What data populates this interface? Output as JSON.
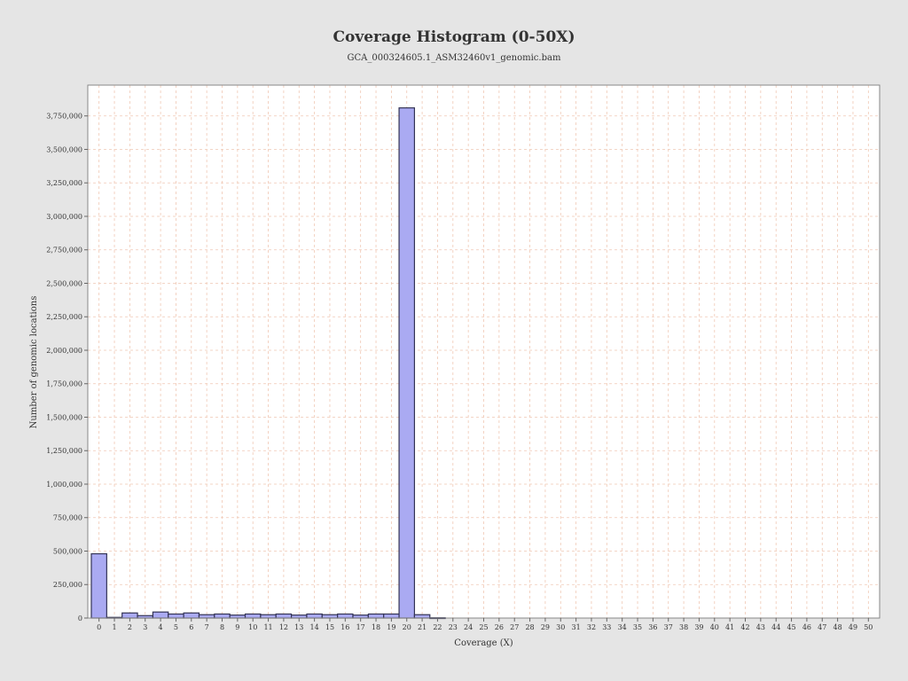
{
  "chart_data": {
    "type": "bar",
    "title": "Coverage Histogram (0-50X)",
    "subtitle": "GCA_000324605.1_ASM32460v1_genomic.bam",
    "xlabel": "Coverage (X)",
    "ylabel": "Number of genomic locations",
    "categories": [
      "0",
      "1",
      "2",
      "3",
      "4",
      "5",
      "6",
      "7",
      "8",
      "9",
      "10",
      "11",
      "12",
      "13",
      "14",
      "15",
      "16",
      "17",
      "18",
      "19",
      "20",
      "21",
      "22",
      "23",
      "24",
      "25",
      "26",
      "27",
      "28",
      "29",
      "30",
      "31",
      "32",
      "33",
      "34",
      "35",
      "36",
      "37",
      "38",
      "39",
      "40",
      "41",
      "42",
      "43",
      "44",
      "45",
      "46",
      "47",
      "48",
      "49",
      "50"
    ],
    "values": [
      480000,
      5000,
      38000,
      18000,
      45000,
      30000,
      38000,
      25000,
      30000,
      22000,
      30000,
      25000,
      30000,
      22000,
      30000,
      25000,
      30000,
      22000,
      30000,
      30000,
      3810000,
      25000,
      2000,
      0,
      0,
      0,
      0,
      0,
      0,
      0,
      0,
      0,
      0,
      0,
      0,
      0,
      0,
      0,
      0,
      0,
      0,
      0,
      0,
      0,
      0,
      0,
      0,
      0,
      0,
      0,
      0
    ],
    "ylim": [
      0,
      3980000
    ],
    "yticks": [
      0,
      250000,
      500000,
      750000,
      1000000,
      1250000,
      1500000,
      1750000,
      2000000,
      2250000,
      2500000,
      2750000,
      3000000,
      3250000,
      3500000,
      3750000
    ],
    "ytick_labels": [
      "0",
      "250,000",
      "500,000",
      "750,000",
      "1,000,000",
      "1,250,000",
      "1,500,000",
      "1,750,000",
      "2,000,000",
      "2,250,000",
      "2,500,000",
      "2,750,000",
      "3,000,000",
      "3,250,000",
      "3,500,000",
      "3,750,000"
    ],
    "grid": true,
    "colors": {
      "bar_fill": "#aaaaf2",
      "bar_stroke": "#333355",
      "grid": "#f0c8b4",
      "plot_bg": "#ffffff",
      "page_bg": "#e5e5e5"
    }
  }
}
